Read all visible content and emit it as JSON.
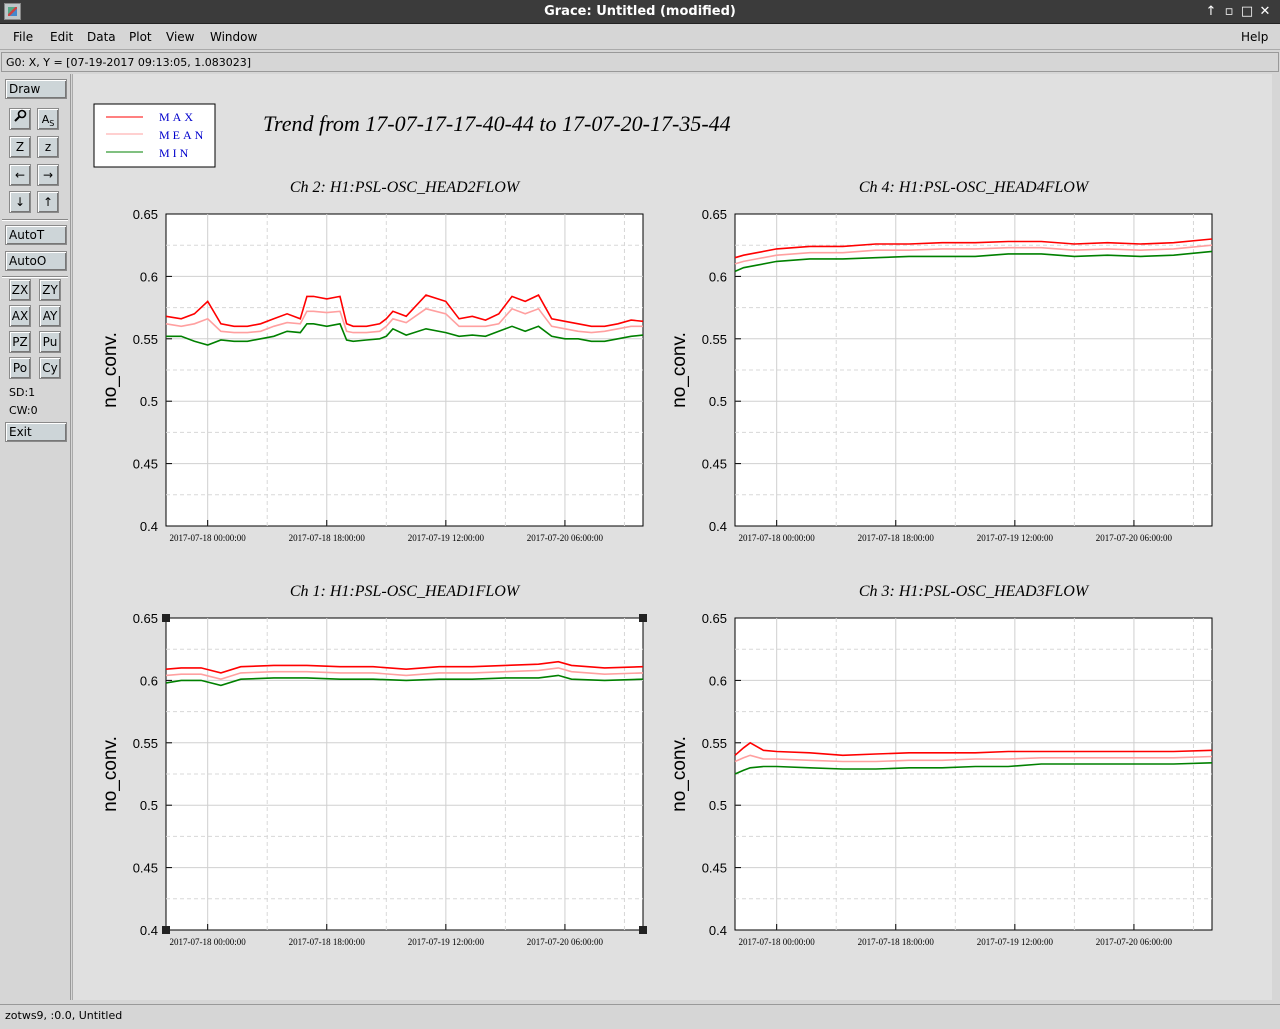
{
  "window": {
    "title": "Grace: Untitled (modified)",
    "controls": [
      "↑",
      "▫",
      "□",
      "✕"
    ]
  },
  "menubar": {
    "items": [
      {
        "label": "File"
      },
      {
        "label": "Edit"
      },
      {
        "label": "Data"
      },
      {
        "label": "Plot"
      },
      {
        "label": "View"
      },
      {
        "label": "Window"
      }
    ],
    "help": "Help"
  },
  "locator": "G0: X, Y = [07-19-2017 09:13:05, 1.083023]",
  "toolbar": {
    "draw": "Draw",
    "icons": [
      {
        "name": "zoom-icon",
        "glyph": "🔍"
      },
      {
        "name": "text-icon",
        "glyph": "A"
      },
      {
        "name": "zoom-in-icon",
        "glyph": "Z"
      },
      {
        "name": "zoom-out-icon",
        "glyph": "z"
      },
      {
        "name": "arrow-left-icon",
        "glyph": "←"
      },
      {
        "name": "arrow-right-icon",
        "glyph": "→"
      },
      {
        "name": "arrow-down-icon",
        "glyph": "↓"
      },
      {
        "name": "arrow-up-icon",
        "glyph": "↑"
      }
    ],
    "autot": "AutoT",
    "autoo": "AutoO",
    "small": [
      "ZX",
      "ZY",
      "AX",
      "AY",
      "PZ",
      "Pu",
      "Po",
      "Cy"
    ],
    "sd": "SD:1",
    "cw": "CW:0",
    "exit": "Exit"
  },
  "statusbar": "zotws9, :0.0, Untitled",
  "legend": [
    {
      "label": "MAX",
      "color": "#ff0000"
    },
    {
      "label": "MEAN",
      "color": "#ffa0a0"
    },
    {
      "label": "MIN",
      "color": "#008000"
    }
  ],
  "main_title": "Trend from 17-07-17-17-40-44 to 17-07-20-17-35-44",
  "chart_data": [
    {
      "type": "line",
      "title": "Ch 2: H1:PSL-OSC_HEAD2FLOW",
      "ylabel": "no_conv.",
      "ylim": [
        0.4,
        0.65
      ],
      "yticks": [
        "0.4",
        "0.45",
        "0.5",
        "0.55",
        "0.6",
        "0.65"
      ],
      "xticks": [
        "2017-07-18 00:00:00",
        "2017-07-18 18:00:00",
        "2017-07-19 12:00:00",
        "2017-07-20 06:00:00"
      ],
      "xlim_hours": [
        -6.3,
        65.8
      ],
      "grid": true,
      "series": [
        {
          "name": "MAX",
          "x": [
            -6.3,
            -4,
            -2,
            0,
            2,
            4,
            6,
            8,
            10,
            12,
            14,
            15,
            16,
            18,
            20,
            21,
            22,
            24,
            26,
            27,
            28,
            30,
            33,
            36,
            38,
            40,
            42,
            44,
            46,
            48,
            50,
            52,
            54,
            56,
            58,
            60,
            62,
            64,
            65.8
          ],
          "values": [
            0.568,
            0.566,
            0.57,
            0.58,
            0.562,
            0.56,
            0.56,
            0.562,
            0.566,
            0.57,
            0.566,
            0.584,
            0.584,
            0.582,
            0.584,
            0.562,
            0.56,
            0.56,
            0.562,
            0.566,
            0.572,
            0.568,
            0.585,
            0.58,
            0.566,
            0.568,
            0.565,
            0.57,
            0.584,
            0.58,
            0.585,
            0.566,
            0.564,
            0.562,
            0.56,
            0.56,
            0.562,
            0.565,
            0.564
          ]
        },
        {
          "name": "MEAN",
          "x": [
            -6.3,
            -4,
            -2,
            0,
            2,
            4,
            6,
            8,
            10,
            12,
            14,
            15,
            16,
            18,
            20,
            21,
            22,
            24,
            26,
            27,
            28,
            30,
            33,
            36,
            38,
            40,
            42,
            44,
            46,
            48,
            50,
            52,
            54,
            56,
            58,
            60,
            62,
            64,
            65.8
          ],
          "values": [
            0.562,
            0.56,
            0.562,
            0.566,
            0.556,
            0.555,
            0.555,
            0.556,
            0.56,
            0.563,
            0.562,
            0.572,
            0.572,
            0.571,
            0.572,
            0.556,
            0.555,
            0.555,
            0.556,
            0.56,
            0.566,
            0.563,
            0.574,
            0.57,
            0.56,
            0.56,
            0.56,
            0.562,
            0.574,
            0.57,
            0.574,
            0.56,
            0.558,
            0.556,
            0.555,
            0.556,
            0.558,
            0.56,
            0.56
          ]
        },
        {
          "name": "MIN",
          "x": [
            -6.3,
            -4,
            -2,
            0,
            2,
            4,
            6,
            8,
            10,
            12,
            14,
            15,
            16,
            18,
            20,
            21,
            22,
            24,
            26,
            27,
            28,
            30,
            33,
            36,
            38,
            40,
            42,
            44,
            46,
            48,
            50,
            52,
            54,
            56,
            58,
            60,
            62,
            64,
            65.8
          ],
          "values": [
            0.552,
            0.552,
            0.548,
            0.545,
            0.549,
            0.548,
            0.548,
            0.55,
            0.552,
            0.556,
            0.555,
            0.562,
            0.562,
            0.56,
            0.562,
            0.549,
            0.548,
            0.549,
            0.55,
            0.552,
            0.558,
            0.553,
            0.558,
            0.555,
            0.552,
            0.553,
            0.552,
            0.556,
            0.56,
            0.556,
            0.56,
            0.552,
            0.55,
            0.55,
            0.548,
            0.548,
            0.55,
            0.552,
            0.553
          ]
        }
      ]
    },
    {
      "type": "line",
      "title": "Ch 4: H1:PSL-OSC_HEAD4FLOW",
      "ylabel": "no_conv.",
      "ylim": [
        0.4,
        0.65
      ],
      "yticks": [
        "0.4",
        "0.45",
        "0.5",
        "0.55",
        "0.6",
        "0.65"
      ],
      "xticks": [
        "2017-07-18 00:00:00",
        "2017-07-18 18:00:00",
        "2017-07-19 12:00:00",
        "2017-07-20 06:00:00"
      ],
      "xlim_hours": [
        -6.3,
        65.8
      ],
      "grid": true,
      "series": [
        {
          "name": "MAX",
          "x": [
            -6.3,
            -5,
            -3,
            0,
            5,
            10,
            15,
            20,
            25,
            30,
            35,
            40,
            45,
            50,
            55,
            60,
            65.8
          ],
          "values": [
            0.615,
            0.617,
            0.619,
            0.622,
            0.624,
            0.624,
            0.626,
            0.626,
            0.627,
            0.627,
            0.628,
            0.628,
            0.626,
            0.627,
            0.626,
            0.627,
            0.63
          ]
        },
        {
          "name": "MEAN",
          "x": [
            -6.3,
            -5,
            -3,
            0,
            5,
            10,
            15,
            20,
            25,
            30,
            35,
            40,
            45,
            50,
            55,
            60,
            65.8
          ],
          "values": [
            0.61,
            0.612,
            0.614,
            0.617,
            0.619,
            0.619,
            0.621,
            0.621,
            0.622,
            0.622,
            0.623,
            0.623,
            0.621,
            0.622,
            0.621,
            0.622,
            0.625
          ]
        },
        {
          "name": "MIN",
          "x": [
            -6.3,
            -5,
            -3,
            0,
            5,
            10,
            15,
            20,
            25,
            30,
            35,
            40,
            45,
            50,
            55,
            60,
            65.8
          ],
          "values": [
            0.604,
            0.607,
            0.609,
            0.612,
            0.614,
            0.614,
            0.615,
            0.616,
            0.616,
            0.616,
            0.618,
            0.618,
            0.616,
            0.617,
            0.616,
            0.617,
            0.62
          ]
        }
      ]
    },
    {
      "type": "line",
      "title": "Ch 1: H1:PSL-OSC_HEAD1FLOW",
      "ylabel": "no_conv.",
      "ylim": [
        0.4,
        0.65
      ],
      "yticks": [
        "0.4",
        "0.45",
        "0.5",
        "0.55",
        "0.6",
        "0.65"
      ],
      "xticks": [
        "2017-07-18 00:00:00",
        "2017-07-18 18:00:00",
        "2017-07-19 12:00:00",
        "2017-07-20 06:00:00"
      ],
      "xlim_hours": [
        -6.3,
        65.8
      ],
      "grid": true,
      "series": [
        {
          "name": "MAX",
          "x": [
            -6.3,
            -4,
            -1,
            2,
            5,
            10,
            15,
            20,
            25,
            30,
            35,
            40,
            45,
            50,
            53,
            55,
            60,
            65.8
          ],
          "values": [
            0.609,
            0.61,
            0.61,
            0.606,
            0.611,
            0.612,
            0.612,
            0.611,
            0.611,
            0.609,
            0.611,
            0.611,
            0.612,
            0.613,
            0.615,
            0.612,
            0.61,
            0.611
          ]
        },
        {
          "name": "MEAN",
          "x": [
            -6.3,
            -4,
            -1,
            2,
            5,
            10,
            15,
            20,
            25,
            30,
            35,
            40,
            45,
            50,
            53,
            55,
            60,
            65.8
          ],
          "values": [
            0.604,
            0.605,
            0.605,
            0.601,
            0.606,
            0.607,
            0.607,
            0.606,
            0.606,
            0.604,
            0.606,
            0.606,
            0.607,
            0.608,
            0.61,
            0.607,
            0.605,
            0.606
          ]
        },
        {
          "name": "MIN",
          "x": [
            -6.3,
            -4,
            -1,
            2,
            5,
            10,
            15,
            20,
            25,
            30,
            35,
            40,
            45,
            50,
            53,
            55,
            60,
            65.8
          ],
          "values": [
            0.598,
            0.6,
            0.6,
            0.596,
            0.601,
            0.602,
            0.602,
            0.601,
            0.601,
            0.6,
            0.601,
            0.601,
            0.602,
            0.602,
            0.604,
            0.601,
            0.6,
            0.601
          ]
        }
      ]
    },
    {
      "type": "line",
      "title": "Ch 3: H1:PSL-OSC_HEAD3FLOW",
      "ylabel": "no_conv.",
      "ylim": [
        0.4,
        0.65
      ],
      "yticks": [
        "0.4",
        "0.45",
        "0.5",
        "0.55",
        "0.6",
        "0.65"
      ],
      "xticks": [
        "2017-07-18 00:00:00",
        "2017-07-18 18:00:00",
        "2017-07-19 12:00:00",
        "2017-07-20 06:00:00"
      ],
      "xlim_hours": [
        -6.3,
        65.8
      ],
      "grid": true,
      "series": [
        {
          "name": "MAX",
          "x": [
            -6.3,
            -5,
            -4,
            -2,
            0,
            5,
            10,
            15,
            20,
            25,
            30,
            35,
            40,
            45,
            50,
            55,
            60,
            65.8
          ],
          "values": [
            0.54,
            0.546,
            0.55,
            0.544,
            0.543,
            0.542,
            0.54,
            0.541,
            0.542,
            0.542,
            0.542,
            0.543,
            0.543,
            0.543,
            0.543,
            0.543,
            0.543,
            0.544
          ]
        },
        {
          "name": "MEAN",
          "x": [
            -6.3,
            -5,
            -4,
            -2,
            0,
            5,
            10,
            15,
            20,
            25,
            30,
            35,
            40,
            45,
            50,
            55,
            60,
            65.8
          ],
          "values": [
            0.535,
            0.538,
            0.54,
            0.537,
            0.537,
            0.536,
            0.535,
            0.535,
            0.536,
            0.536,
            0.537,
            0.537,
            0.538,
            0.538,
            0.538,
            0.538,
            0.538,
            0.539
          ]
        },
        {
          "name": "MIN",
          "x": [
            -6.3,
            -5,
            -4,
            -2,
            0,
            5,
            10,
            15,
            20,
            25,
            30,
            35,
            40,
            45,
            50,
            55,
            60,
            65.8
          ],
          "values": [
            0.525,
            0.528,
            0.53,
            0.531,
            0.531,
            0.53,
            0.529,
            0.529,
            0.53,
            0.53,
            0.531,
            0.531,
            0.533,
            0.533,
            0.533,
            0.533,
            0.533,
            0.534
          ]
        }
      ]
    }
  ]
}
